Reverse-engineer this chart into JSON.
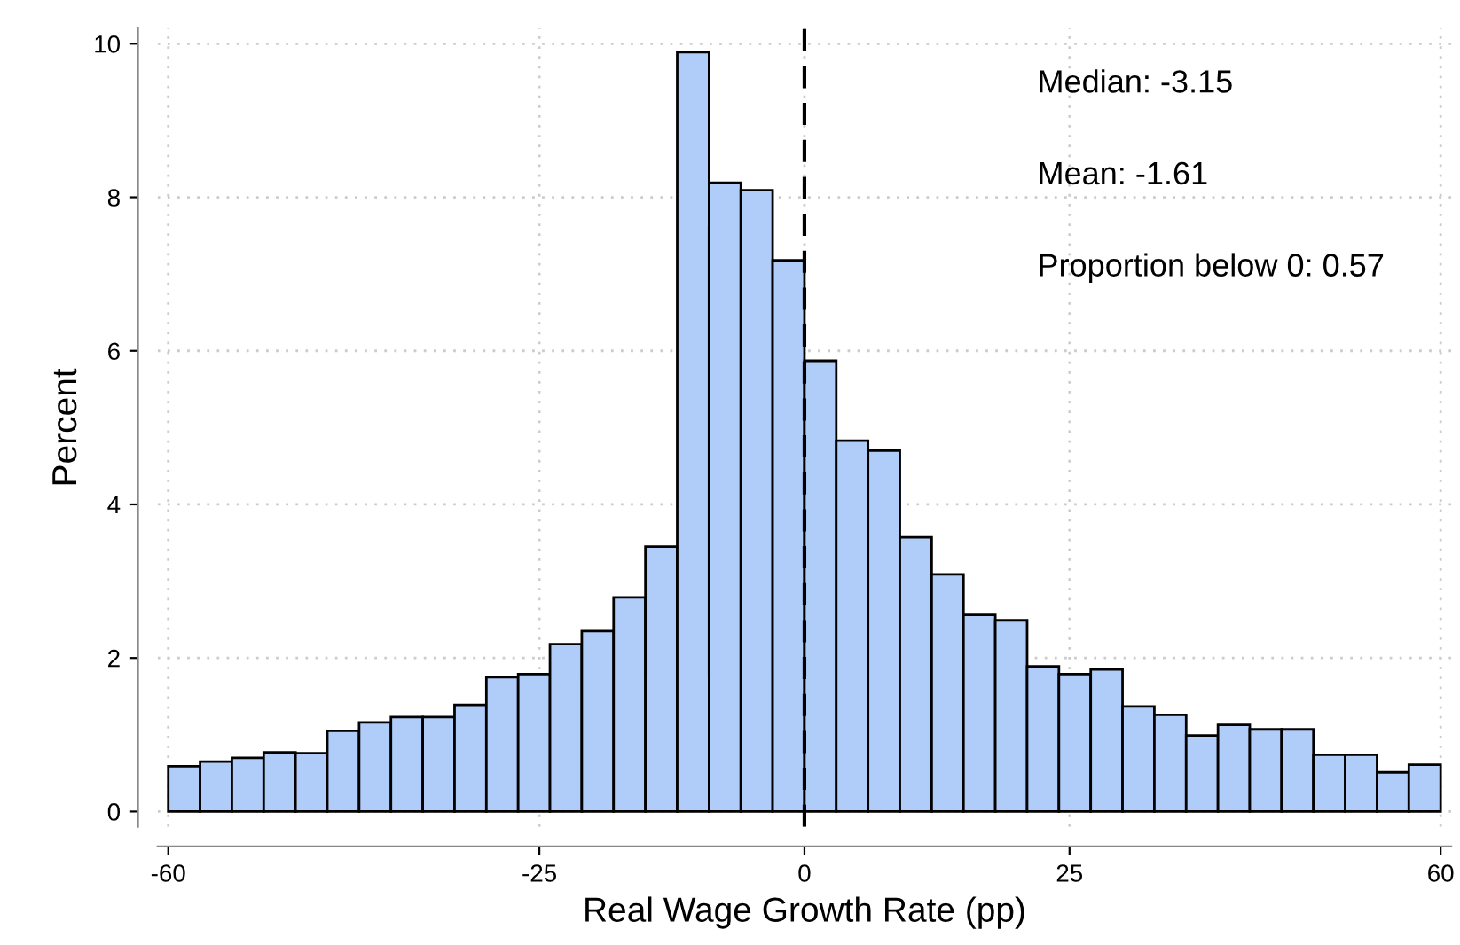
{
  "chart_data": {
    "type": "histogram",
    "xlabel": "Real Wage Growth Rate (pp)",
    "ylabel": "Percent",
    "bins": [
      -60,
      -57,
      -54,
      -51,
      -48,
      -45,
      -42,
      -39,
      -36,
      -33,
      -30,
      -27,
      -24,
      -21,
      -18,
      -15,
      -12,
      -9,
      -6,
      -3,
      0,
      3,
      6,
      9,
      12,
      15,
      18,
      21,
      24,
      27,
      30,
      33,
      36,
      39,
      42,
      45,
      48,
      51,
      54,
      57,
      60
    ],
    "values": [
      0.59,
      0.65,
      0.7,
      0.77,
      0.76,
      1.05,
      1.16,
      1.23,
      1.23,
      1.39,
      1.75,
      1.79,
      2.18,
      2.35,
      2.79,
      3.45,
      9.89,
      8.19,
      8.09,
      7.18,
      5.87,
      4.83,
      4.7,
      3.57,
      3.09,
      2.56,
      2.49,
      1.89,
      1.79,
      1.85,
      1.37,
      1.26,
      0.99,
      1.13,
      1.07,
      1.07,
      0.74,
      0.74,
      0.51,
      0.61
    ],
    "color": "#b0cdf9",
    "xlim": [
      -61,
      61
    ],
    "ylim": [
      -0.2,
      10.2
    ],
    "xticks": [
      -60,
      -25,
      0,
      25,
      60
    ],
    "yticks": [
      0,
      2,
      4,
      6,
      8,
      10
    ],
    "grid": true,
    "ref_lines": [
      {
        "axis": "x",
        "value": 0,
        "line_style": "dashed",
        "color": "#000000"
      }
    ],
    "annotations": [
      "Median: -3.15",
      "Mean: -1.61",
      "Proportion below 0: 0.57"
    ]
  }
}
